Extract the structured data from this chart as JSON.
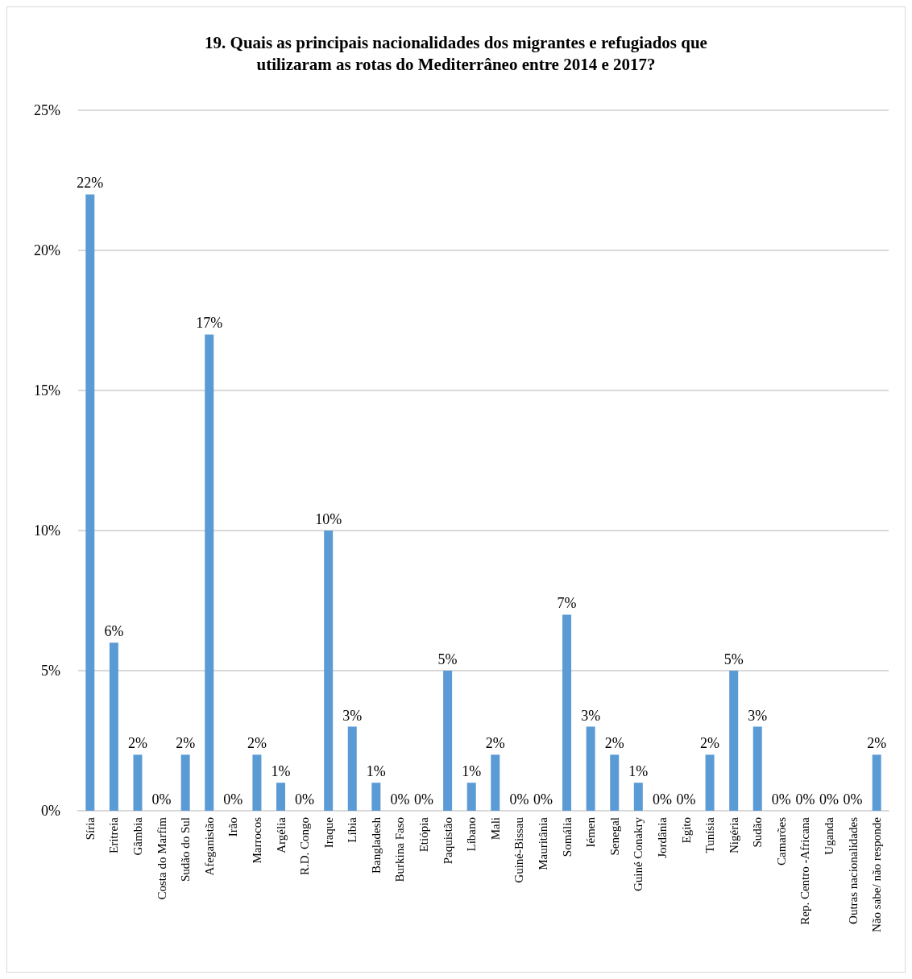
{
  "chart_data": {
    "type": "bar",
    "title": "19. Quais as principais nacionalidades dos migrantes e refugiados que\nutilizaram as rotas do Mediterrâneo entre 2014 e 2017?",
    "categories": [
      "Síria",
      "Eritreia",
      "Gâmbia",
      "Costa do Marfim",
      "Sudão do Sul",
      "Afeganistão",
      "Irão",
      "Marrocos",
      "Argélia",
      "R.D. Congo",
      "Iraque",
      "Líbia",
      "Bangladesh",
      "Burkina Faso",
      "Etiópia",
      "Paquistão",
      "Líbano",
      "Mali",
      "Guiné-Bissau",
      "Mauritânia",
      "Somália",
      "Iémen",
      "Senegal",
      "Guiné Conakry",
      "Jordânia",
      "Egito",
      "Tunísia",
      "Nigéria",
      "Sudão",
      "Camarões",
      "Rep. Centro -Africana",
      "Uganda",
      "Outras nacionalidades",
      "Não sabe/ não responde"
    ],
    "values": [
      22,
      6,
      2,
      0,
      2,
      17,
      0,
      2,
      1,
      0,
      10,
      3,
      1,
      0,
      0,
      5,
      1,
      2,
      0,
      0,
      7,
      3,
      2,
      1,
      0,
      0,
      2,
      5,
      3,
      0,
      0,
      0,
      0,
      2
    ],
    "value_labels": [
      "22%",
      "6%",
      "2%",
      "0%",
      "2%",
      "17%",
      "0%",
      "2%",
      "1%",
      "0%",
      "10%",
      "3%",
      "1%",
      "0%",
      "0%",
      "5%",
      "1%",
      "2%",
      "0%",
      "0%",
      "7%",
      "3%",
      "2%",
      "1%",
      "0%",
      "0%",
      "2%",
      "5%",
      "3%",
      "0%",
      "0%",
      "0%",
      "0%",
      "2%"
    ],
    "color": "#5b9bd5",
    "ylim": [
      0,
      25
    ],
    "yticks": [
      {
        "value": 0,
        "label": "0%"
      },
      {
        "value": 5,
        "label": "5%"
      },
      {
        "value": 10,
        "label": "10%"
      },
      {
        "value": 15,
        "label": "15%"
      },
      {
        "value": 20,
        "label": "20%"
      },
      {
        "value": 25,
        "label": "25%"
      }
    ],
    "grid": true
  }
}
